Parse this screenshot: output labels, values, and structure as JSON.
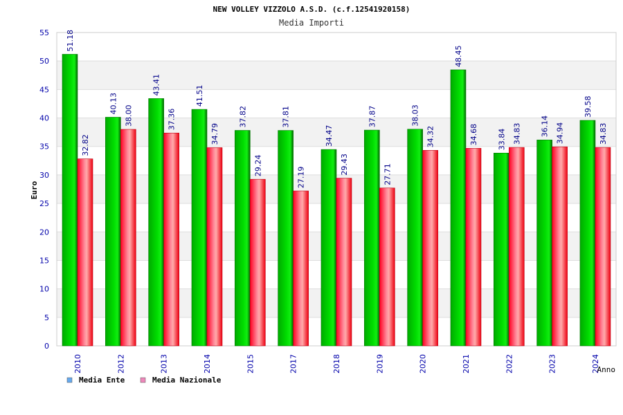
{
  "chart_data": {
    "type": "bar",
    "title": "NEW VOLLEY VIZZOLO A.S.D. (c.f.12541920158)",
    "subtitle": "Media Importi",
    "xlabel": "Anno",
    "ylabel": "Euro",
    "ylim": [
      0,
      55
    ],
    "yticks": [
      "0",
      "5",
      "10",
      "15",
      "20",
      "25",
      "30",
      "35",
      "40",
      "45",
      "50",
      "55"
    ],
    "categories": [
      "2010",
      "2012",
      "2013",
      "2014",
      "2015",
      "2017",
      "2018",
      "2019",
      "2020",
      "2021",
      "2022",
      "2023",
      "2024"
    ],
    "series": [
      {
        "name": "Media Ente",
        "values": [
          51.18,
          40.13,
          43.41,
          41.51,
          37.82,
          37.81,
          34.47,
          37.87,
          38.03,
          48.45,
          33.84,
          36.14,
          39.58
        ],
        "labels": [
          "51.18",
          "40.13",
          "43.41",
          "41.51",
          "37.82",
          "37.81",
          "34.47",
          "37.87",
          "38.03",
          "48.45",
          "33.84",
          "36.14",
          "39.58"
        ]
      },
      {
        "name": "Media Nazionale",
        "values": [
          32.82,
          38.0,
          37.36,
          34.79,
          29.24,
          27.19,
          29.43,
          27.71,
          34.32,
          34.68,
          34.83,
          34.94,
          34.83
        ],
        "labels": [
          "32.82",
          "38.00",
          "37.36",
          "34.79",
          "29.24",
          "27.19",
          "29.43",
          "27.71",
          "34.32",
          "34.68",
          "34.83",
          "34.94",
          "34.83"
        ]
      }
    ],
    "legend_position": "bottom-left",
    "grid": true
  },
  "colors": {
    "ente": "#00cc00",
    "ente_dark": "#007700",
    "nazionale": "#ff1133",
    "nazionale_light": "#ffaaaa",
    "legend_ente": "#66aaee",
    "legend_nazionale": "#ee88bb",
    "axis_text": "#0000aa",
    "band": "#f2f2f2"
  }
}
